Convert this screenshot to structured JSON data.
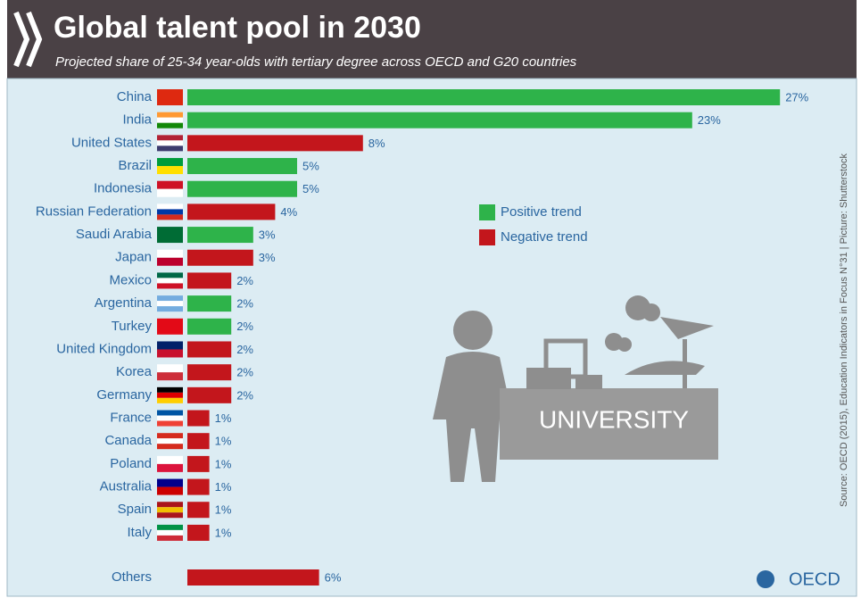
{
  "chart_data": {
    "type": "bar",
    "orientation": "horizontal",
    "title": "Global talent pool in 2030",
    "subtitle": "Projected share of 25-34 year-olds with tertiary degree across OECD and G20 countries",
    "categories": [
      "China",
      "India",
      "United States",
      "Brazil",
      "Indonesia",
      "Russian Federation",
      "Saudi Arabia",
      "Japan",
      "Mexico",
      "Argentina",
      "Turkey",
      "United Kingdom",
      "Korea",
      "Germany",
      "France",
      "Canada",
      "Poland",
      "Australia",
      "Spain",
      "Italy",
      "Others"
    ],
    "series": [
      {
        "name": "Positive trend",
        "color": "#2eb34a",
        "values": [
          27,
          23,
          null,
          5,
          5,
          null,
          3,
          null,
          null,
          2,
          2,
          null,
          null,
          null,
          null,
          null,
          null,
          null,
          null,
          null,
          null
        ],
        "value_labels": [
          "27%",
          "23%",
          null,
          "5%",
          "5%",
          null,
          "3%",
          null,
          null,
          "2%",
          "2%",
          null,
          null,
          null,
          null,
          null,
          null,
          null,
          null,
          null,
          null
        ]
      },
      {
        "name": "Negative trend",
        "color": "#c3161c",
        "values": [
          null,
          null,
          8,
          null,
          null,
          4,
          null,
          3,
          2,
          null,
          null,
          2,
          2,
          2,
          1,
          1,
          1,
          1,
          1,
          1,
          6
        ],
        "value_labels": [
          null,
          null,
          "8%",
          null,
          null,
          "4%",
          null,
          "3%",
          "2%",
          null,
          null,
          "2%",
          "2%",
          "2%",
          "1%",
          "1%",
          "1%",
          "1%",
          "1%",
          "1%",
          "6%"
        ]
      }
    ],
    "legend": "right",
    "illustration_label": "UNIVERSITY",
    "source": "Source: OECD (2015), Education Indicators in Focus N°31 | Picture: Shutterstock",
    "logo_text": "OECD"
  }
}
